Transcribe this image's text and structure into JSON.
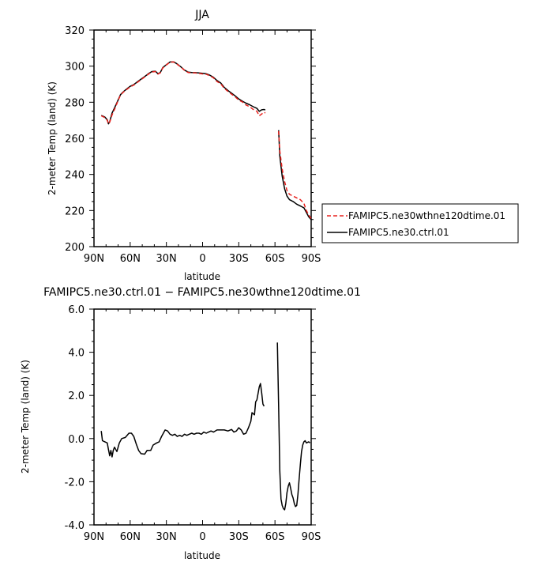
{
  "chart_data": [
    {
      "type": "line",
      "title": "JJA",
      "xlabel": "latitude",
      "ylabel": "2-meter Temp (land) (K)",
      "xlim": [
        90,
        -90
      ],
      "ylim": [
        200,
        320
      ],
      "x_ticks": [
        90,
        60,
        30,
        0,
        -30,
        -60,
        -90
      ],
      "x_tick_labels": [
        "90N",
        "60N",
        "30N",
        "0",
        "30S",
        "60S",
        "90S"
      ],
      "y_ticks": [
        200,
        220,
        240,
        260,
        280,
        300,
        320
      ],
      "y_tick_labels": [
        "200",
        "220",
        "240",
        "260",
        "280",
        "300",
        "320"
      ],
      "legend_position": "right",
      "series": [
        {
          "name": "FAMIPC5.ne30wthne120dtime.01",
          "color": "#e8221e",
          "dash": "dashed",
          "segments": [
            [
              [
                84,
                272.5
              ],
              [
                81,
                271.5
              ],
              [
                79,
                270
              ],
              [
                78,
                268
              ],
              [
                77,
                269
              ],
              [
                75,
                273
              ],
              [
                73,
                276
              ],
              [
                70,
                281
              ],
              [
                68,
                284
              ],
              [
                65,
                286
              ],
              [
                62,
                287.5
              ],
              [
                60,
                288.5
              ],
              [
                57,
                289.5
              ],
              [
                54,
                291
              ],
              [
                51,
                292.5
              ],
              [
                48,
                294
              ],
              [
                45,
                295.5
              ],
              [
                42,
                296.8
              ],
              [
                39,
                297
              ],
              [
                37,
                295.6
              ],
              [
                35,
                296.3
              ],
              [
                33,
                299
              ],
              [
                30,
                300.7
              ],
              [
                27,
                302.2
              ],
              [
                24,
                302.3
              ],
              [
                21,
                301
              ],
              [
                18,
                299.5
              ],
              [
                15,
                297.7
              ],
              [
                12,
                296.5
              ],
              [
                9,
                296.3
              ],
              [
                6,
                296.2
              ],
              [
                3,
                296
              ],
              [
                0,
                295.7
              ],
              [
                -3,
                295.5
              ],
              [
                -6,
                294.7
              ],
              [
                -9,
                293.5
              ],
              [
                -12,
                291.5
              ],
              [
                -15,
                290.3
              ],
              [
                -18,
                287.7
              ],
              [
                -21,
                286
              ],
              [
                -24,
                284.5
              ],
              [
                -27,
                283
              ],
              [
                -30,
                281.2
              ],
              [
                -33,
                280.2
              ],
              [
                -36,
                278.5
              ],
              [
                -39,
                277.5
              ],
              [
                -42,
                276
              ],
              [
                -45,
                275
              ],
              [
                -47,
                272.5
              ],
              [
                -49,
                273.5
              ],
              [
                -51,
                274.5
              ],
              [
                -52,
                274
              ]
            ],
            [
              [
                -63,
                264
              ],
              [
                -64,
                253
              ],
              [
                -66,
                243
              ],
              [
                -68,
                236
              ],
              [
                -70,
                231
              ],
              [
                -72,
                229
              ],
              [
                -75,
                228
              ],
              [
                -78,
                227
              ],
              [
                -81,
                226
              ],
              [
                -84,
                224
              ],
              [
                -86,
                220
              ],
              [
                -88,
                217.5
              ],
              [
                -90,
                215.5
              ]
            ]
          ]
        },
        {
          "name": "FAMIPC5.ne30.ctrl.01",
          "color": "#000000",
          "dash": "solid",
          "segments": [
            [
              [
                84,
                272.7
              ],
              [
                81,
                271.8
              ],
              [
                79,
                270.3
              ],
              [
                78,
                268
              ],
              [
                77,
                269.2
              ],
              [
                75,
                274
              ],
              [
                73,
                276.8
              ],
              [
                70,
                281.3
              ],
              [
                68,
                284.2
              ],
              [
                65,
                286.2
              ],
              [
                62,
                287.8
              ],
              [
                60,
                288.8
              ],
              [
                57,
                289.8
              ],
              [
                54,
                291.3
              ],
              [
                51,
                292.8
              ],
              [
                48,
                294.2
              ],
              [
                45,
                295.8
              ],
              [
                42,
                297
              ],
              [
                39,
                297.2
              ],
              [
                37,
                295.8
              ],
              [
                35,
                296.5
              ],
              [
                33,
                299.2
              ],
              [
                30,
                300.8
              ],
              [
                27,
                302.3
              ],
              [
                24,
                302.4
              ],
              [
                21,
                301.2
              ],
              [
                18,
                299.6
              ],
              [
                15,
                297.8
              ],
              [
                12,
                296.7
              ],
              [
                9,
                296.5
              ],
              [
                6,
                296.4
              ],
              [
                3,
                296.2
              ],
              [
                0,
                296
              ],
              [
                -3,
                295.8
              ],
              [
                -6,
                295
              ],
              [
                -9,
                293.8
              ],
              [
                -12,
                292
              ],
              [
                -15,
                290.7
              ],
              [
                -18,
                288.2
              ],
              [
                -21,
                286.5
              ],
              [
                -24,
                285
              ],
              [
                -27,
                283.5
              ],
              [
                -30,
                281.8
              ],
              [
                -33,
                280.6
              ],
              [
                -36,
                279.5
              ],
              [
                -39,
                278.6
              ],
              [
                -42,
                277.5
              ],
              [
                -45,
                276.6
              ],
              [
                -47,
                275
              ],
              [
                -49,
                275.8
              ],
              [
                -51,
                276
              ],
              [
                -52,
                275.7
              ]
            ],
            [
              [
                -63,
                264.5
              ],
              [
                -64,
                250
              ],
              [
                -66,
                239
              ],
              [
                -68,
                232
              ],
              [
                -70,
                228
              ],
              [
                -72,
                226
              ],
              [
                -75,
                225
              ],
              [
                -78,
                223.5
              ],
              [
                -81,
                222.5
              ],
              [
                -84,
                221.5
              ],
              [
                -86,
                219
              ],
              [
                -88,
                216.5
              ],
              [
                -90,
                215
              ]
            ]
          ]
        }
      ]
    },
    {
      "type": "line",
      "title": "FAMIPC5.ne30.ctrl.01 − FAMIPC5.ne30wthne120dtime.01",
      "xlabel": "latitude",
      "ylabel": "2-meter Temp (land) (K)",
      "xlim": [
        90,
        -90
      ],
      "ylim": [
        -4,
        6
      ],
      "x_ticks": [
        90,
        60,
        30,
        0,
        -30,
        -60,
        -90
      ],
      "x_tick_labels": [
        "90N",
        "60N",
        "30N",
        "0",
        "30S",
        "60S",
        "90S"
      ],
      "y_ticks": [
        -4,
        -2,
        0,
        2,
        4,
        6
      ],
      "y_tick_labels": [
        "-4.0",
        "-2.0",
        "0.0",
        "2.0",
        "4.0",
        "6.0"
      ],
      "series": [
        {
          "color": "#000000",
          "dash": "solid",
          "segments": [
            [
              [
                84,
                0.35
              ],
              [
                83,
                -0.1
              ],
              [
                81,
                -0.15
              ],
              [
                79,
                -0.2
              ],
              [
                78,
                -0.5
              ],
              [
                77,
                -0.8
              ],
              [
                76,
                -0.55
              ],
              [
                75,
                -0.85
              ],
              [
                74,
                -0.55
              ],
              [
                73,
                -0.4
              ],
              [
                71,
                -0.6
              ],
              [
                69,
                -0.2
              ],
              [
                67,
                0
              ],
              [
                64,
                0.05
              ],
              [
                61,
                0.25
              ],
              [
                59,
                0.25
              ],
              [
                57,
                0.1
              ],
              [
                55,
                -0.25
              ],
              [
                53,
                -0.55
              ],
              [
                51,
                -0.7
              ],
              [
                48,
                -0.72
              ],
              [
                46,
                -0.55
              ],
              [
                43,
                -0.55
              ],
              [
                41,
                -0.3
              ],
              [
                38,
                -0.2
              ],
              [
                36,
                -0.15
              ],
              [
                34,
                0.1
              ],
              [
                31,
                0.4
              ],
              [
                29,
                0.35
              ],
              [
                27,
                0.2
              ],
              [
                25,
                0.15
              ],
              [
                23,
                0.2
              ],
              [
                21,
                0.1
              ],
              [
                19,
                0.15
              ],
              [
                17,
                0.1
              ],
              [
                15,
                0.2
              ],
              [
                13,
                0.15
              ],
              [
                11,
                0.2
              ],
              [
                9,
                0.25
              ],
              [
                7,
                0.2
              ],
              [
                5,
                0.25
              ],
              [
                3,
                0.25
              ],
              [
                1,
                0.2
              ],
              [
                -1,
                0.3
              ],
              [
                -3,
                0.25
              ],
              [
                -5,
                0.3
              ],
              [
                -7,
                0.35
              ],
              [
                -9,
                0.3
              ],
              [
                -12,
                0.4
              ],
              [
                -15,
                0.4
              ],
              [
                -18,
                0.4
              ],
              [
                -21,
                0.35
              ],
              [
                -24,
                0.42
              ],
              [
                -26,
                0.3
              ],
              [
                -28,
                0.35
              ],
              [
                -30,
                0.5
              ],
              [
                -32,
                0.4
              ],
              [
                -34,
                0.2
              ],
              [
                -36,
                0.25
              ],
              [
                -38,
                0.5
              ],
              [
                -40,
                0.8
              ],
              [
                -41,
                1.2
              ],
              [
                -43,
                1.1
              ],
              [
                -44,
                1.7
              ],
              [
                -45,
                1.8
              ],
              [
                -46,
                2.1
              ],
              [
                -47,
                2.4
              ],
              [
                -48,
                2.55
              ],
              [
                -49,
                2.1
              ],
              [
                -50,
                1.6
              ],
              [
                -51,
                1.5
              ]
            ],
            [
              [
                -62,
                4.45
              ],
              [
                -63,
                1.5
              ],
              [
                -64,
                -1.5
              ],
              [
                -65,
                -2.8
              ],
              [
                -66,
                -3.1
              ],
              [
                -67,
                -3.25
              ],
              [
                -68,
                -3.3
              ],
              [
                -69,
                -3
              ],
              [
                -70,
                -2.5
              ],
              [
                -71,
                -2.2
              ],
              [
                -72,
                -2.05
              ],
              [
                -73,
                -2.3
              ],
              [
                -74,
                -2.6
              ],
              [
                -75,
                -2.75
              ],
              [
                -76,
                -3
              ],
              [
                -77,
                -3.15
              ],
              [
                -78,
                -3.1
              ],
              [
                -79,
                -2.6
              ],
              [
                -80,
                -1.9
              ],
              [
                -81,
                -1.2
              ],
              [
                -82,
                -0.6
              ],
              [
                -83,
                -0.3
              ],
              [
                -84,
                -0.15
              ],
              [
                -85,
                -0.1
              ],
              [
                -86,
                -0.2
              ],
              [
                -88,
                -0.15
              ],
              [
                -89,
                -0.2
              ]
            ]
          ]
        }
      ]
    }
  ]
}
